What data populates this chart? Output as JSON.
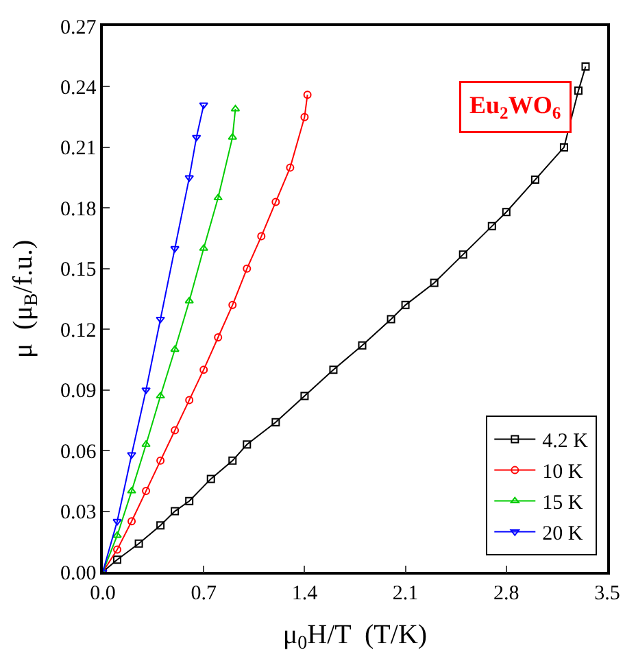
{
  "chart_data": {
    "type": "line",
    "xlabel": "μ$_{0}$H/T  (T/K)",
    "ylabel": "μ  (μ$_{B}$/f.u.)",
    "annotations": [
      "Eu$_{2}$WO$_{6}$"
    ],
    "xlim": [
      0,
      3.5
    ],
    "xticks": [
      {
        "value": 0,
        "label": "0.0"
      },
      0.7,
      1.4,
      2.1,
      2.8,
      3.5
    ],
    "ylim": [
      0,
      0.27
    ],
    "yticks": [
      {
        "value": 0,
        "label": "0.00"
      },
      0.03,
      0.06,
      0.09,
      0.12,
      0.15,
      0.18,
      0.21,
      0.24,
      0.27
    ],
    "legend": "bottom right",
    "line_style": "solid",
    "series": [
      {
        "name": "4.2 K",
        "color": "#000000",
        "marker": "square",
        "x": [
          0,
          0.1,
          0.25,
          0.4,
          0.5,
          0.6,
          0.75,
          0.9,
          1.0,
          1.2,
          1.4,
          1.6,
          1.8,
          2.0,
          2.1,
          2.3,
          2.5,
          2.7,
          2.8,
          3.0,
          3.2,
          3.3,
          3.35
        ],
        "values": [
          0,
          0.006,
          0.014,
          0.023,
          0.03,
          0.035,
          0.046,
          0.055,
          0.063,
          0.074,
          0.087,
          0.1,
          0.112,
          0.125,
          0.132,
          0.143,
          0.157,
          0.171,
          0.178,
          0.194,
          0.21,
          0.238,
          0.25
        ]
      },
      {
        "name": "10 K",
        "color": "#ff0000",
        "marker": "circle",
        "x": [
          0,
          0.1,
          0.2,
          0.3,
          0.4,
          0.5,
          0.6,
          0.7,
          0.8,
          0.9,
          1.0,
          1.1,
          1.2,
          1.3,
          1.4,
          1.42
        ],
        "values": [
          0,
          0.011,
          0.025,
          0.04,
          0.055,
          0.07,
          0.085,
          0.1,
          0.116,
          0.132,
          0.15,
          0.166,
          0.183,
          0.2,
          0.225,
          0.236
        ]
      },
      {
        "name": "15 K",
        "color": "#00cc00",
        "marker": "triangle",
        "x": [
          0,
          0.1,
          0.2,
          0.3,
          0.4,
          0.5,
          0.6,
          0.7,
          0.8,
          0.9,
          0.92
        ],
        "values": [
          0,
          0.018,
          0.04,
          0.063,
          0.087,
          0.11,
          0.134,
          0.16,
          0.185,
          0.215,
          0.229
        ]
      },
      {
        "name": "20 K",
        "color": "#0000ff",
        "marker": "triangle-down",
        "x": [
          0,
          0.1,
          0.2,
          0.3,
          0.4,
          0.5,
          0.6,
          0.65,
          0.7
        ],
        "values": [
          0,
          0.025,
          0.058,
          0.09,
          0.125,
          0.16,
          0.195,
          0.215,
          0.231
        ]
      }
    ]
  }
}
